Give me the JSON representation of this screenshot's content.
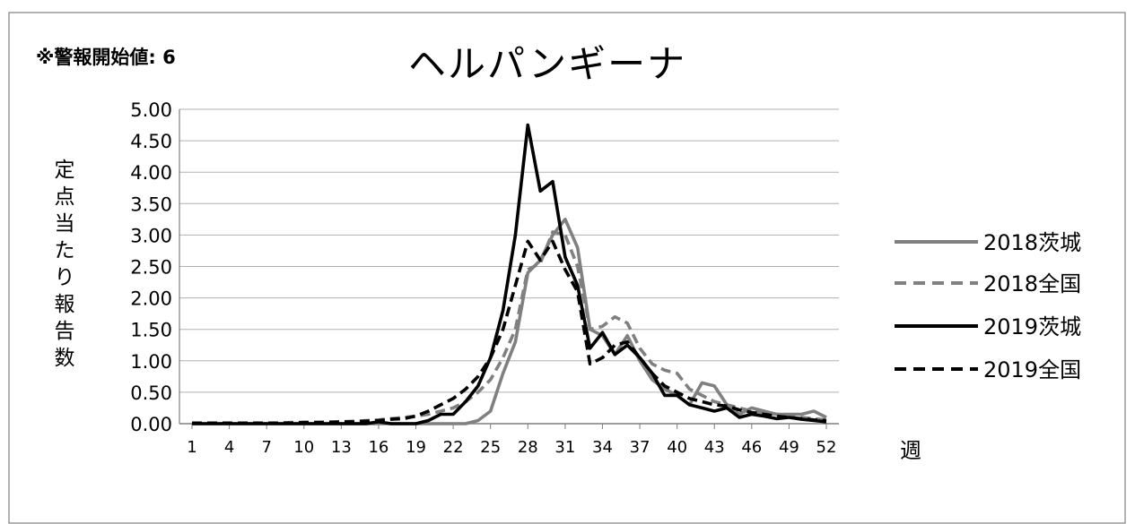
{
  "chart_data": {
    "type": "line",
    "title": "ヘルパンギーナ",
    "note": "※警報開始値: 6",
    "xlabel": "週",
    "ylabel": "定点当たり報告数",
    "ylim": [
      0,
      5
    ],
    "yticks": [
      "0.00",
      "0.50",
      "1.00",
      "1.50",
      "2.00",
      "2.50",
      "3.00",
      "3.50",
      "4.00",
      "4.50",
      "5.00"
    ],
    "xticks": [
      1,
      4,
      7,
      10,
      13,
      16,
      19,
      22,
      25,
      28,
      31,
      34,
      37,
      40,
      43,
      46,
      49,
      52
    ],
    "grid": true,
    "legend_position": "right",
    "x": [
      1,
      2,
      3,
      4,
      5,
      6,
      7,
      8,
      9,
      10,
      11,
      12,
      13,
      14,
      15,
      16,
      17,
      18,
      19,
      20,
      21,
      22,
      23,
      24,
      25,
      26,
      27,
      28,
      29,
      30,
      31,
      32,
      33,
      34,
      35,
      36,
      37,
      38,
      39,
      40,
      41,
      42,
      43,
      44,
      45,
      46,
      47,
      48,
      49,
      50,
      51,
      52
    ],
    "series": [
      {
        "name": "2018茨城",
        "color": "#808080",
        "dash": "solid",
        "values": [
          0,
          0,
          0,
          0,
          0,
          0,
          0,
          0,
          0,
          0,
          0,
          0,
          0,
          0,
          0,
          0,
          0,
          0,
          0,
          0,
          0,
          0,
          0,
          0.05,
          0.2,
          0.8,
          1.3,
          2.4,
          2.6,
          3.0,
          3.25,
          2.8,
          1.5,
          1.4,
          1.1,
          1.4,
          1.0,
          0.7,
          0.55,
          0.45,
          0.3,
          0.65,
          0.6,
          0.3,
          0.15,
          0.25,
          0.2,
          0.15,
          0.15,
          0.15,
          0.2,
          0.1
        ]
      },
      {
        "name": "2018全国",
        "color": "#808080",
        "dash": "dashed",
        "values": [
          0,
          0.01,
          0.01,
          0.01,
          0.01,
          0.01,
          0.01,
          0.01,
          0.02,
          0.02,
          0.02,
          0.03,
          0.03,
          0.04,
          0.05,
          0.06,
          0.08,
          0.1,
          0.12,
          0.15,
          0.2,
          0.25,
          0.35,
          0.5,
          0.7,
          1.05,
          1.5,
          2.45,
          2.55,
          3.05,
          3.0,
          2.5,
          1.5,
          1.55,
          1.7,
          1.6,
          1.2,
          0.95,
          0.85,
          0.8,
          0.55,
          0.45,
          0.35,
          0.3,
          0.25,
          0.2,
          0.17,
          0.15,
          0.12,
          0.1,
          0.08,
          0.06
        ]
      },
      {
        "name": "2019茨城",
        "color": "#000000",
        "dash": "solid",
        "values": [
          0,
          0,
          0,
          0,
          0,
          0,
          0,
          0,
          0,
          0,
          0,
          0,
          0,
          0,
          0,
          0.03,
          0,
          0,
          0,
          0.05,
          0.15,
          0.15,
          0.35,
          0.6,
          1.05,
          1.8,
          3.0,
          4.75,
          3.7,
          3.85,
          2.65,
          2.2,
          1.2,
          1.45,
          1.1,
          1.25,
          1.05,
          0.8,
          0.45,
          0.45,
          0.3,
          0.25,
          0.2,
          0.25,
          0.1,
          0.15,
          0.12,
          0.08,
          0.1,
          0.07,
          0.05,
          0.03
        ]
      },
      {
        "name": "2019全国",
        "color": "#000000",
        "dash": "dashed",
        "values": [
          0.01,
          0.01,
          0.01,
          0.01,
          0.01,
          0.01,
          0.01,
          0.01,
          0.01,
          0.02,
          0.02,
          0.02,
          0.03,
          0.03,
          0.04,
          0.05,
          0.07,
          0.08,
          0.12,
          0.2,
          0.3,
          0.4,
          0.55,
          0.75,
          1.05,
          1.5,
          2.2,
          2.9,
          2.6,
          2.9,
          2.45,
          2.1,
          0.95,
          1.05,
          1.25,
          1.3,
          1.05,
          0.8,
          0.6,
          0.5,
          0.4,
          0.35,
          0.3,
          0.28,
          0.22,
          0.18,
          0.15,
          0.12,
          0.1,
          0.08,
          0.06,
          0.05
        ]
      }
    ]
  }
}
